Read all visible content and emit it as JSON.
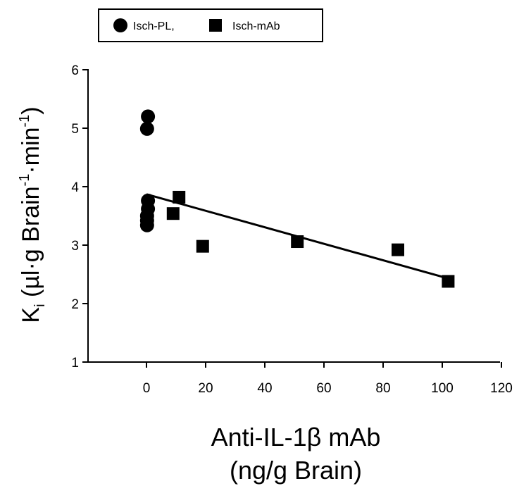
{
  "chart_data": {
    "type": "scatter",
    "xlabel_line1": "Anti-IL-1β mAb",
    "xlabel_line2": "(ng/g Brain)",
    "ylabel_main": "K",
    "ylabel_sub": "i",
    "ylabel_rest_1": " (µl·g Brain",
    "ylabel_sup_1": "-1",
    "ylabel_rest_2": "·min",
    "ylabel_sup_2": "-1",
    "ylabel_rest_3": ")",
    "xlim": [
      -20,
      120
    ],
    "ylim": [
      1,
      6
    ],
    "x_ticks": [
      0,
      20,
      40,
      60,
      80,
      100,
      120
    ],
    "y_ticks": [
      1,
      2,
      3,
      4,
      5,
      6
    ],
    "legend": {
      "placement": "top-left",
      "entries": [
        {
          "label": "Isch-PL,",
          "marker": "circle"
        },
        {
          "label": "Isch-mAb",
          "marker": "square"
        }
      ]
    },
    "series": [
      {
        "name": "Isch-PL,",
        "marker": "circle",
        "points": [
          {
            "x": 0.5,
            "y": 5.2
          },
          {
            "x": 0.2,
            "y": 4.99
          },
          {
            "x": 0.5,
            "y": 3.76
          },
          {
            "x": 0.5,
            "y": 3.62
          },
          {
            "x": 0.2,
            "y": 3.5
          },
          {
            "x": 0.2,
            "y": 3.42
          },
          {
            "x": 0.2,
            "y": 3.34
          }
        ]
      },
      {
        "name": "Isch-mAb",
        "marker": "square",
        "points": [
          {
            "x": 11,
            "y": 3.82
          },
          {
            "x": 9,
            "y": 3.54
          },
          {
            "x": 19,
            "y": 2.98
          },
          {
            "x": 51,
            "y": 3.06
          },
          {
            "x": 85,
            "y": 2.92
          },
          {
            "x": 102,
            "y": 2.38
          }
        ]
      }
    ],
    "regression": {
      "x": [
        0,
        102
      ],
      "y": [
        3.87,
        2.43
      ]
    }
  }
}
